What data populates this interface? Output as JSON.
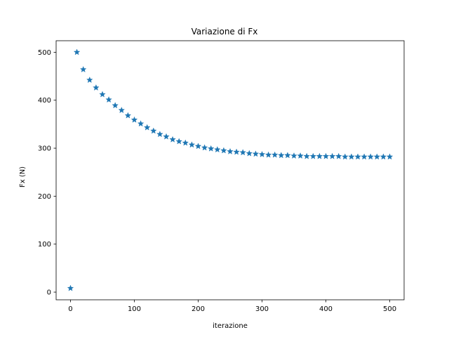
{
  "chart_data": {
    "type": "scatter",
    "title": "Variazione di Fx",
    "xlabel": "iterazione",
    "ylabel": "Fx (N)",
    "xlim": [
      -22.5,
      522.5
    ],
    "ylim": [
      -16,
      524
    ],
    "xticks": [
      0,
      100,
      200,
      300,
      400,
      500
    ],
    "yticks": [
      0,
      100,
      200,
      300,
      400,
      500
    ],
    "grid": false,
    "marker": "star",
    "color": "#1f77b4",
    "x": [
      0,
      10,
      20,
      30,
      40,
      50,
      60,
      70,
      80,
      90,
      100,
      110,
      120,
      130,
      140,
      150,
      160,
      170,
      180,
      190,
      200,
      210,
      220,
      230,
      240,
      250,
      260,
      270,
      280,
      290,
      300,
      310,
      320,
      330,
      340,
      350,
      360,
      370,
      380,
      390,
      400,
      410,
      420,
      430,
      440,
      450,
      460,
      470,
      480,
      490,
      500
    ],
    "values": [
      8,
      500,
      464,
      442,
      426,
      412,
      401,
      389,
      379,
      368,
      359,
      351,
      343,
      336,
      329,
      324,
      318,
      314,
      311,
      307,
      304,
      301,
      299,
      297,
      295,
      293,
      292,
      291,
      289,
      288,
      287,
      286,
      286,
      285,
      285,
      284,
      284,
      283,
      283,
      283,
      283,
      283,
      283,
      282,
      282,
      282,
      282,
      282,
      282,
      282,
      282
    ]
  }
}
